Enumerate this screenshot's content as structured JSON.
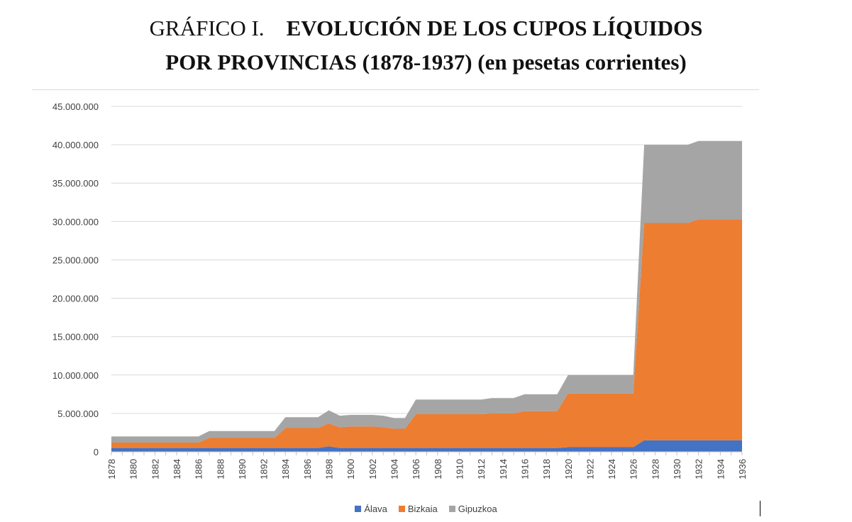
{
  "title": {
    "line1_prefix": "GRÁFICO I.",
    "line1_main": "EVOLUCIÓN DE LOS CUPOS LÍQUIDOS",
    "line2": "POR PROVINCIAS (1878-1937) (en pesetas corrientes)"
  },
  "chart_data": {
    "type": "area",
    "stacked": true,
    "x": [
      1878,
      1879,
      1880,
      1881,
      1882,
      1883,
      1884,
      1885,
      1886,
      1887,
      1888,
      1889,
      1890,
      1891,
      1892,
      1893,
      1894,
      1895,
      1896,
      1897,
      1898,
      1899,
      1900,
      1901,
      1902,
      1903,
      1904,
      1905,
      1906,
      1907,
      1908,
      1909,
      1910,
      1911,
      1912,
      1913,
      1914,
      1915,
      1916,
      1917,
      1918,
      1919,
      1920,
      1921,
      1922,
      1923,
      1924,
      1925,
      1926,
      1927,
      1928,
      1929,
      1930,
      1931,
      1932,
      1933,
      1934,
      1935,
      1936
    ],
    "x_tick_labels": [
      "1878",
      "1880",
      "1882",
      "1884",
      "1886",
      "1888",
      "1890",
      "1892",
      "1894",
      "1896",
      "1898",
      "1900",
      "1902",
      "1904",
      "1906",
      "1908",
      "1910",
      "1912",
      "1914",
      "1916",
      "1918",
      "1920",
      "1922",
      "1924",
      "1926",
      "1928",
      "1930",
      "1932",
      "1934",
      "1936"
    ],
    "y_tick_labels": [
      "0",
      "5.000.000",
      "10.000.000",
      "15.000.000",
      "20.000.000",
      "25.000.000",
      "30.000.000",
      "35.000.000",
      "40.000.000",
      "45.000.000"
    ],
    "ylim": [
      0,
      45000000
    ],
    "y_tick_step": 5000000,
    "grid": true,
    "legend_position": "bottom",
    "series": [
      {
        "name": "Álava",
        "color": "#4472c4",
        "values": [
          500000,
          500000,
          500000,
          500000,
          500000,
          500000,
          500000,
          500000,
          500000,
          500000,
          500000,
          500000,
          500000,
          500000,
          500000,
          500000,
          500000,
          500000,
          500000,
          500000,
          700000,
          500000,
          500000,
          500000,
          500000,
          500000,
          500000,
          500000,
          500000,
          500000,
          500000,
          500000,
          500000,
          500000,
          500000,
          500000,
          500000,
          500000,
          500000,
          500000,
          500000,
          500000,
          600000,
          600000,
          600000,
          600000,
          600000,
          600000,
          600000,
          1500000,
          1500000,
          1500000,
          1500000,
          1500000,
          1500000,
          1500000,
          1500000,
          1500000,
          1500000
        ]
      },
      {
        "name": "Bizkaia",
        "color": "#ed7d31",
        "values": [
          700000,
          700000,
          700000,
          700000,
          700000,
          700000,
          700000,
          700000,
          700000,
          1300000,
          1300000,
          1300000,
          1300000,
          1300000,
          1300000,
          1300000,
          2600000,
          2600000,
          2600000,
          2600000,
          3000000,
          2700000,
          2800000,
          2800000,
          2800000,
          2700000,
          2500000,
          2500000,
          4400000,
          4400000,
          4400000,
          4400000,
          4400000,
          4400000,
          4400000,
          4500000,
          4500000,
          4500000,
          4800000,
          4800000,
          4800000,
          4800000,
          7000000,
          7000000,
          7000000,
          7000000,
          7000000,
          7000000,
          7000000,
          28300000,
          28300000,
          28300000,
          28300000,
          28300000,
          28800000,
          28800000,
          28800000,
          28800000,
          28800000
        ]
      },
      {
        "name": "Gipuzkoa",
        "color": "#a5a5a5",
        "values": [
          800000,
          800000,
          800000,
          800000,
          800000,
          800000,
          800000,
          800000,
          800000,
          900000,
          900000,
          900000,
          900000,
          900000,
          900000,
          900000,
          1400000,
          1400000,
          1400000,
          1400000,
          1700000,
          1500000,
          1500000,
          1500000,
          1500000,
          1500000,
          1400000,
          1400000,
          1900000,
          1900000,
          1900000,
          1900000,
          1900000,
          1900000,
          1900000,
          2000000,
          2000000,
          2000000,
          2200000,
          2200000,
          2200000,
          2200000,
          2400000,
          2400000,
          2400000,
          2400000,
          2400000,
          2400000,
          2400000,
          10200000,
          10200000,
          10200000,
          10200000,
          10200000,
          10200000,
          10200000,
          10200000,
          10200000,
          10200000
        ]
      }
    ]
  }
}
